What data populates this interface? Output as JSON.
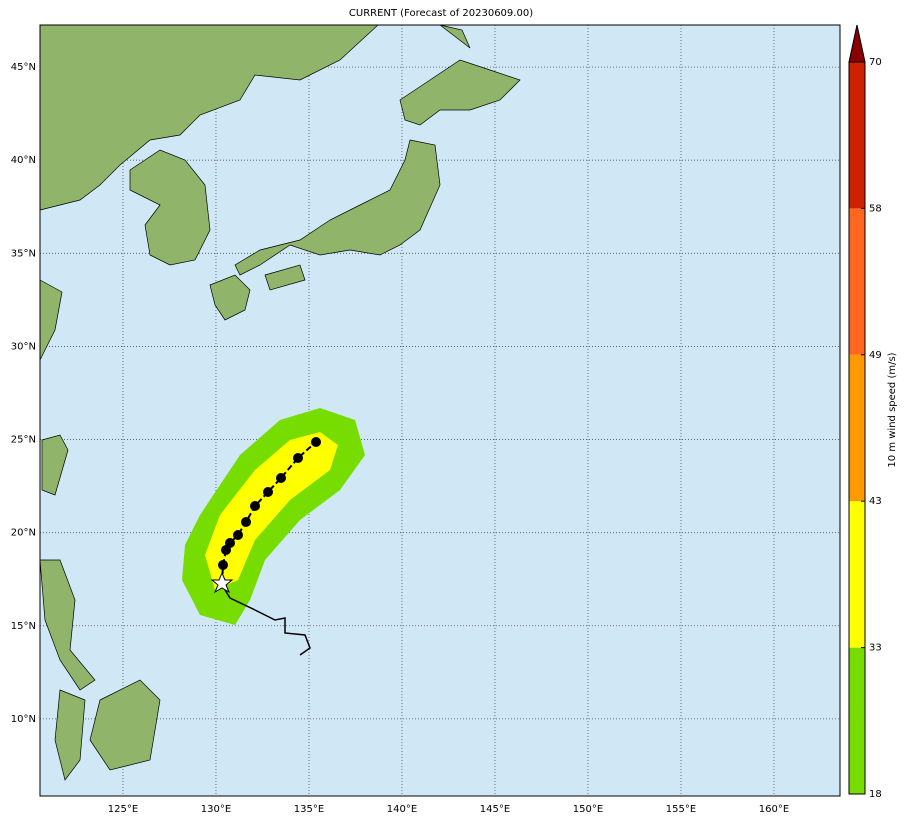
{
  "map": {
    "title": "CURRENT (Forecast of 20230609.00)",
    "lonlim": [
      120.54,
      163.55
    ],
    "latlim": [
      5.86,
      47.26
    ],
    "lon_ticks": [
      {
        "value": 125,
        "label": "125°E"
      },
      {
        "value": 130,
        "label": "130°E"
      },
      {
        "value": 135,
        "label": "135°E"
      },
      {
        "value": 140,
        "label": "140°E"
      },
      {
        "value": 145,
        "label": "145°E"
      },
      {
        "value": 150,
        "label": "150°E"
      },
      {
        "value": 155,
        "label": "155°E"
      },
      {
        "value": 160,
        "label": "160°E"
      }
    ],
    "lat_ticks": [
      {
        "value": 10,
        "label": "10°N"
      },
      {
        "value": 15,
        "label": "15°N"
      },
      {
        "value": 20,
        "label": "20°N"
      },
      {
        "value": 25,
        "label": "25°N"
      },
      {
        "value": 30,
        "label": "30°N"
      },
      {
        "value": 35,
        "label": "35°N"
      },
      {
        "value": 40,
        "label": "40°N"
      },
      {
        "value": 45,
        "label": "45°N"
      }
    ]
  },
  "colorbar": {
    "label": "10 m wind speed (m/s)",
    "levels": [
      18,
      33,
      43,
      49,
      58,
      70
    ],
    "colors": [
      "#77dd00",
      "#ffff00",
      "#ff9900",
      "#ff6622",
      "#cc2200"
    ],
    "extend_color": "#880000"
  }
}
